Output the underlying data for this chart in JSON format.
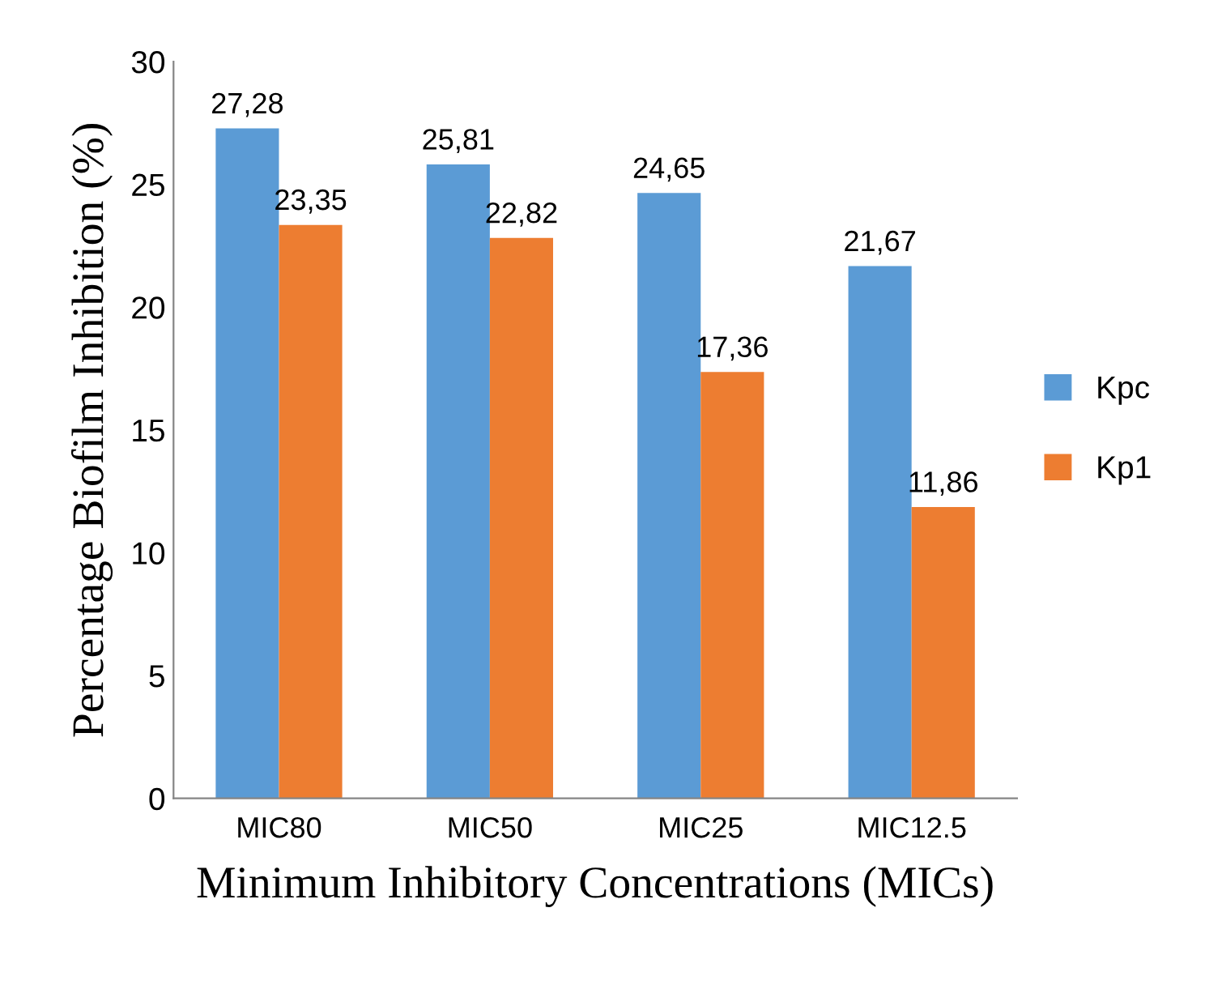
{
  "chart_data": {
    "type": "bar",
    "xlabel": "Minimum Inhibitory Concentrations (MICs)",
    "ylabel": "Percentage Biofilm Inhibition (%)",
    "categories": [
      "MIC80",
      "MIC50",
      "MIC25",
      "MIC12.5"
    ],
    "series": [
      {
        "name": "Kpc",
        "color": "#5b9bd5",
        "values": [
          27.28,
          25.81,
          24.65,
          21.67
        ],
        "value_labels": [
          "27,28",
          "25,81",
          "24,65",
          "21,67"
        ]
      },
      {
        "name": "Kp1",
        "color": "#ed7d31",
        "values": [
          23.35,
          22.82,
          17.36,
          11.86
        ],
        "value_labels": [
          "23,35",
          "22,82",
          "17,36",
          "11,86"
        ]
      }
    ],
    "ylim": [
      0,
      30
    ],
    "yticks": [
      0,
      5,
      10,
      15,
      20,
      25,
      30
    ],
    "grid": false,
    "legend": "right"
  }
}
